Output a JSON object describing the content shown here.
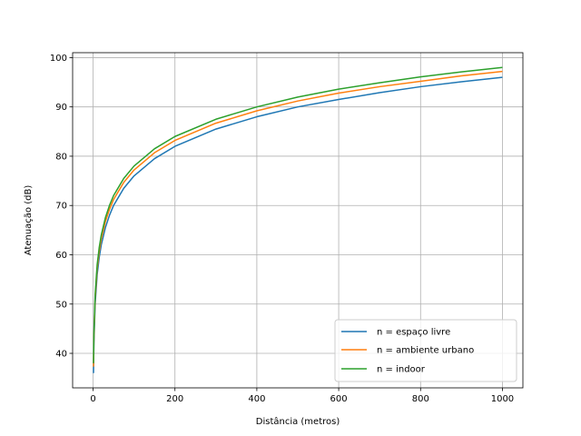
{
  "chart_data": {
    "type": "line",
    "xlabel": "Distância (metros)",
    "ylabel": "Atenuação (dB)",
    "xlim": [
      -50,
      1050
    ],
    "ylim": [
      33,
      101
    ],
    "xticks": [
      0,
      200,
      400,
      600,
      800,
      1000
    ],
    "yticks": [
      40,
      50,
      60,
      70,
      80,
      90,
      100
    ],
    "grid": true,
    "legend_position": "lower right",
    "series": [
      {
        "name": "n = espaço livre",
        "color": "#1f77b4",
        "x": [
          1,
          2,
          5,
          10,
          15,
          20,
          30,
          40,
          50,
          75,
          100,
          150,
          200,
          300,
          400,
          500,
          600,
          700,
          800,
          900,
          1000
        ],
        "y": [
          36.0,
          42.0,
          50.0,
          56.0,
          59.5,
          62.0,
          65.5,
          68.0,
          70.0,
          73.5,
          76.0,
          79.5,
          82.0,
          85.5,
          88.0,
          90.0,
          91.5,
          92.9,
          94.1,
          95.1,
          96.0
        ]
      },
      {
        "name": "n = ambiente urbano",
        "color": "#ff7f0e",
        "x": [
          1,
          2,
          5,
          10,
          15,
          20,
          30,
          40,
          50,
          75,
          100,
          150,
          200,
          300,
          400,
          500,
          600,
          700,
          800,
          900,
          1000
        ],
        "y": [
          37.3,
          43.3,
          51.2,
          57.2,
          60.7,
          63.2,
          66.7,
          69.2,
          71.2,
          74.7,
          77.2,
          80.7,
          83.2,
          86.7,
          89.2,
          91.2,
          92.8,
          94.1,
          95.2,
          96.3,
          97.2
        ]
      },
      {
        "name": "n = indoor",
        "color": "#2ca02c",
        "x": [
          1,
          2,
          5,
          10,
          15,
          20,
          30,
          40,
          50,
          75,
          100,
          150,
          200,
          300,
          400,
          500,
          600,
          700,
          800,
          900,
          1000
        ],
        "y": [
          38.0,
          44.0,
          52.0,
          58.0,
          61.5,
          64.0,
          67.5,
          70.0,
          72.0,
          75.5,
          78.0,
          81.5,
          84.0,
          87.5,
          90.0,
          92.0,
          93.6,
          94.9,
          96.1,
          97.1,
          98.0
        ]
      }
    ]
  }
}
